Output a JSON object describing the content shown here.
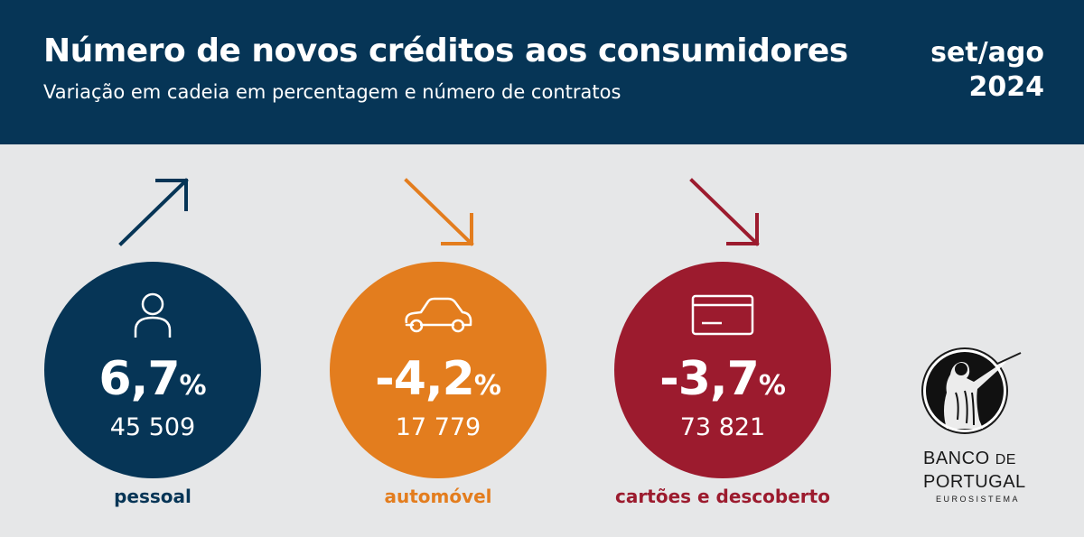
{
  "header": {
    "title": "Número de novos créditos aos consumidores",
    "subtitle": "Variação em cadeia em percentagem e número de contratos",
    "period_line1": "set/ago",
    "period_line2": "2024"
  },
  "colors": {
    "navy": "#063556",
    "orange": "#e37d1e",
    "crimson": "#9c1b2e",
    "background": "#e6e7e8"
  },
  "categories": [
    {
      "label": "pessoal",
      "change": "6,7",
      "unit": "%",
      "contracts": "45 509",
      "icon": "person-icon",
      "trend": "up-arrow-icon"
    },
    {
      "label": "automóvel",
      "change": "-4,2",
      "unit": "%",
      "contracts": "17 779",
      "icon": "car-icon",
      "trend": "down-arrow-icon"
    },
    {
      "label": "cartões e descoberto",
      "change": "-3,7",
      "unit": "%",
      "contracts": "73 821",
      "icon": "credit-card-icon",
      "trend": "down-arrow-icon"
    }
  ],
  "logo": {
    "line1_caps": "BANCO",
    "line1_small": "DE",
    "line2": "PORTUGAL",
    "line3": "EUROSISTEMA"
  }
}
